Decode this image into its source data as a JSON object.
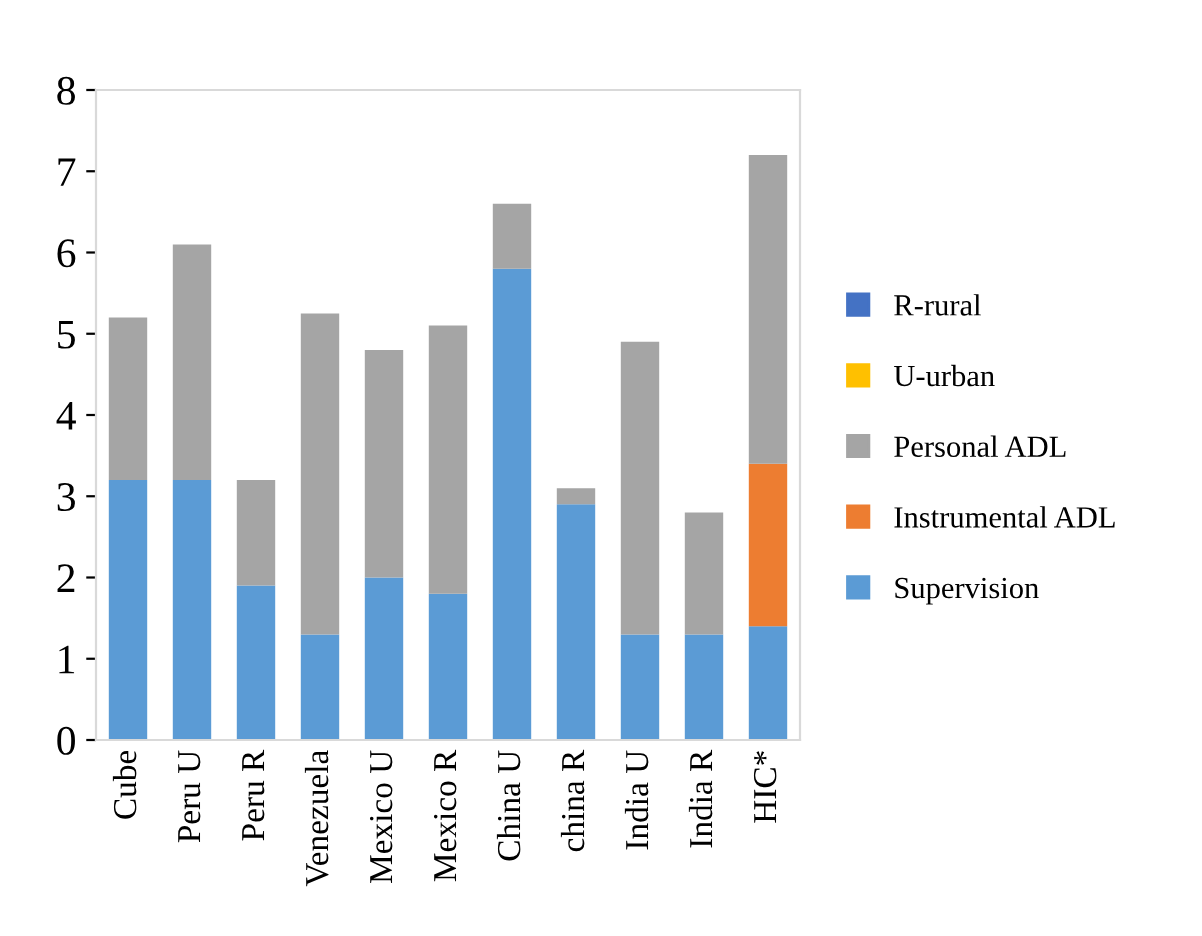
{
  "chart_data": {
    "type": "bar",
    "stacked": true,
    "categories": [
      "Cube",
      "Peru U",
      "Peru R",
      "Venezuela",
      "Mexico U",
      "Mexico R",
      "China U",
      "china R",
      "India U",
      "India R",
      "HIC*"
    ],
    "series": [
      {
        "name": "Supervision",
        "color": "#5b9bd5",
        "values": [
          3.2,
          3.2,
          1.9,
          1.3,
          2.0,
          1.8,
          5.8,
          2.9,
          1.3,
          1.3,
          1.4
        ]
      },
      {
        "name": "Instrumental ADL",
        "color": "#ed7d31",
        "values": [
          0,
          0,
          0,
          0,
          0,
          0,
          0,
          0,
          0,
          0,
          2.0
        ]
      },
      {
        "name": "Personal ADL",
        "color": "#a5a5a5",
        "values": [
          2.0,
          2.9,
          1.3,
          3.95,
          2.8,
          3.3,
          0.8,
          0.2,
          3.6,
          1.5,
          3.8
        ]
      },
      {
        "name": "U-urban",
        "color": "#ffc000",
        "values": [
          0,
          0,
          0,
          0,
          0,
          0,
          0,
          0,
          0,
          0,
          0
        ]
      },
      {
        "name": "R-rural",
        "color": "#4472c4",
        "values": [
          0,
          0,
          0,
          0,
          0,
          0,
          0,
          0,
          0,
          0,
          0
        ]
      }
    ],
    "ylim": [
      0,
      8
    ],
    "yticks": [
      0,
      1,
      2,
      3,
      4,
      5,
      6,
      7,
      8
    ],
    "grid": false,
    "legend": "right"
  }
}
